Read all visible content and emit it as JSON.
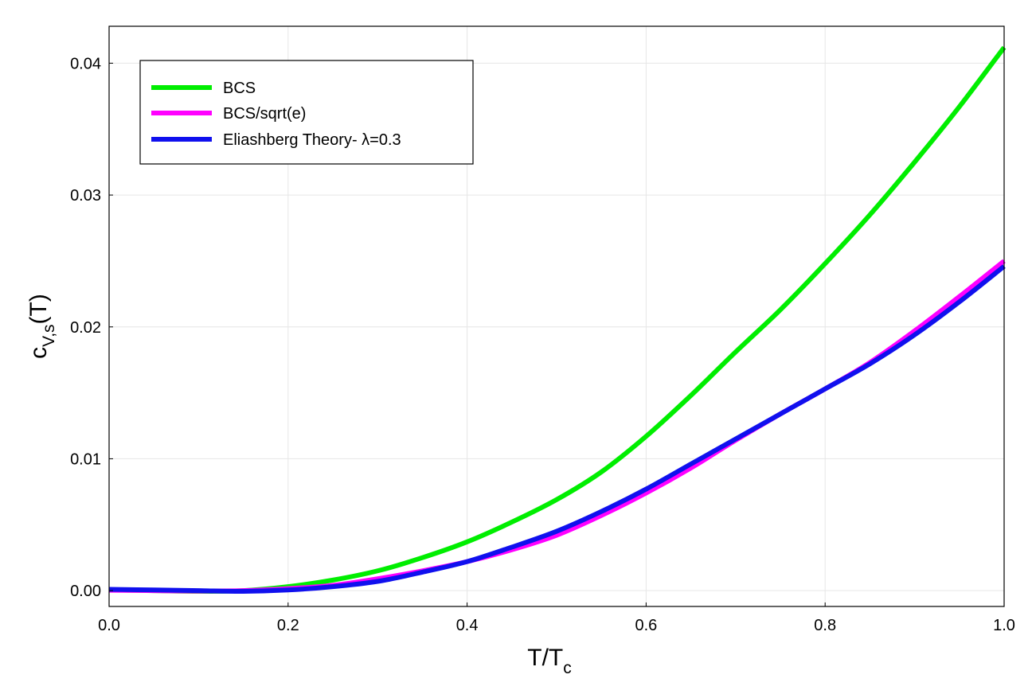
{
  "chart_data": {
    "type": "line",
    "xlabel": {
      "main": "T/T",
      "sub": "c"
    },
    "ylabel": {
      "main": "c",
      "sub": "V,s",
      "tail": "(T)"
    },
    "xlim": [
      0.0,
      1.0
    ],
    "ylim": [
      -0.0012,
      0.0428
    ],
    "x_ticks": [
      "0.0",
      "0.2",
      "0.4",
      "0.6",
      "0.8",
      "1.0"
    ],
    "y_ticks": [
      "0.00",
      "0.01",
      "0.02",
      "0.03",
      "0.04"
    ],
    "grid": true,
    "legend_position": "top-left",
    "series": [
      {
        "name": "BCS",
        "color": "#00ee00",
        "x": [
          0.0,
          0.05,
          0.1,
          0.15,
          0.2,
          0.25,
          0.3,
          0.35,
          0.4,
          0.45,
          0.5,
          0.55,
          0.6,
          0.65,
          0.7,
          0.75,
          0.8,
          0.85,
          0.9,
          0.95,
          1.0
        ],
        "y": [
          5e-05,
          0.0,
          -5e-05,
          0.0,
          0.0003,
          0.0008,
          0.0015,
          0.0025,
          0.0037,
          0.0052,
          0.0069,
          0.009,
          0.0117,
          0.0148,
          0.0181,
          0.0213,
          0.0248,
          0.0285,
          0.0325,
          0.0367,
          0.0412
        ]
      },
      {
        "name": "BCS/sqrt(e)",
        "color": "#ff00ff",
        "x": [
          0.0,
          0.05,
          0.1,
          0.15,
          0.2,
          0.25,
          0.3,
          0.35,
          0.4,
          0.45,
          0.5,
          0.55,
          0.6,
          0.65,
          0.7,
          0.75,
          0.8,
          0.85,
          0.9,
          0.95,
          1.0
        ],
        "y": [
          3e-05,
          0.0,
          -3e-05,
          0.0,
          0.00015,
          0.0004,
          0.0009,
          0.0015,
          0.0022,
          0.0031,
          0.0042,
          0.0057,
          0.0074,
          0.0093,
          0.0114,
          0.0134,
          0.0153,
          0.0173,
          0.0197,
          0.0223,
          0.025
        ]
      },
      {
        "name": "Eliashberg Theory- λ=0.3",
        "color": "#1010ee",
        "x": [
          0.0,
          0.05,
          0.1,
          0.15,
          0.2,
          0.25,
          0.3,
          0.35,
          0.4,
          0.45,
          0.5,
          0.55,
          0.6,
          0.65,
          0.7,
          0.75,
          0.8,
          0.85,
          0.9,
          0.95,
          1.0
        ],
        "y": [
          0.0001,
          5e-05,
          0.0,
          -5e-05,
          5e-05,
          0.0003,
          0.0007,
          0.0014,
          0.0022,
          0.0033,
          0.0045,
          0.006,
          0.0077,
          0.0096,
          0.0115,
          0.0134,
          0.0153,
          0.0172,
          0.0194,
          0.0219,
          0.0246
        ]
      }
    ]
  }
}
